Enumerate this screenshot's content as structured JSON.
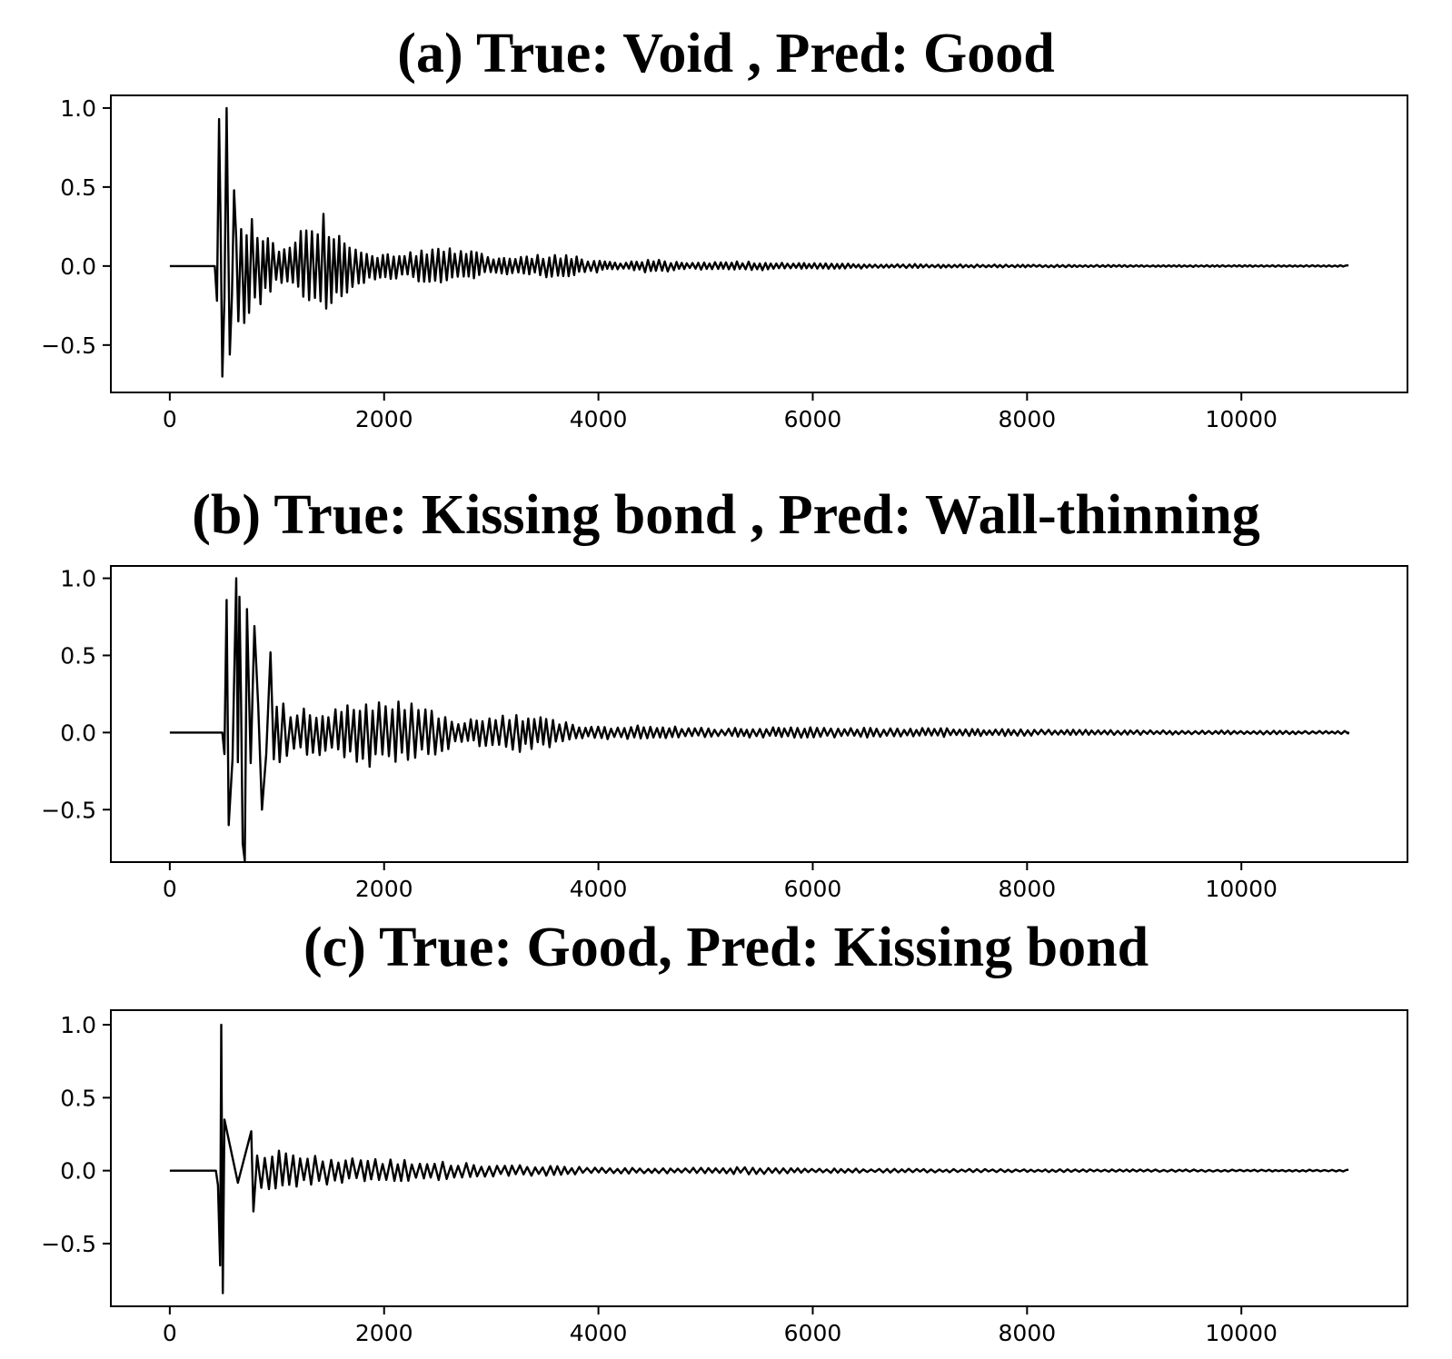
{
  "chart_data": [
    {
      "type": "line",
      "title": "(a) True: Void , Pred: Good",
      "xlabel": "",
      "ylabel": "",
      "xlim": [
        -550,
        11550
      ],
      "ylim": [
        -0.8,
        1.08
      ],
      "xticks": [
        0,
        2000,
        4000,
        6000,
        8000,
        10000
      ],
      "xtick_labels": [
        "0",
        "2000",
        "4000",
        "6000",
        "8000",
        "10000"
      ],
      "yticks": [
        1.0,
        0.5,
        0.0,
        -0.5
      ],
      "ytick_labels": [
        "1.0",
        "0.5",
        "0.0",
        "−0.5"
      ],
      "grid": false,
      "legend": "none",
      "line_color": "#000000",
      "signal": {
        "x_start": 0,
        "x_end": 11000,
        "onset": 420,
        "peaks": [
          {
            "x": 460,
            "y": 0.93
          },
          {
            "x": 490,
            "y": -0.7
          },
          {
            "x": 530,
            "y": 1.0
          },
          {
            "x": 560,
            "y": -0.56
          },
          {
            "x": 600,
            "y": 0.48
          },
          {
            "x": 640,
            "y": -0.35
          }
        ],
        "envelope": [
          [
            0,
            0
          ],
          [
            420,
            0
          ],
          [
            440,
            0.55
          ],
          [
            600,
            0.45
          ],
          [
            800,
            0.28
          ],
          [
            1000,
            0.12
          ],
          [
            1100,
            0.1
          ],
          [
            1300,
            0.3
          ],
          [
            1400,
            0.36
          ],
          [
            1500,
            0.3
          ],
          [
            1700,
            0.14
          ],
          [
            2000,
            0.08
          ],
          [
            2300,
            0.1
          ],
          [
            2600,
            0.12
          ],
          [
            2800,
            0.11
          ],
          [
            3000,
            0.05
          ],
          [
            3300,
            0.06
          ],
          [
            3600,
            0.09
          ],
          [
            3900,
            0.05
          ],
          [
            4200,
            0.02
          ],
          [
            4500,
            0.05
          ],
          [
            4800,
            0.02
          ],
          [
            5300,
            0.03
          ],
          [
            6000,
            0.018
          ],
          [
            7000,
            0.012
          ],
          [
            8000,
            0.008
          ],
          [
            9000,
            0.006
          ],
          [
            11000,
            0.005
          ]
        ],
        "period": 52
      }
    },
    {
      "type": "line",
      "title": "(b) True: Kissing bond , Pred: Wall-thinning",
      "xlabel": "",
      "ylabel": "",
      "xlim": [
        -550,
        11550
      ],
      "ylim": [
        -0.84,
        1.08
      ],
      "xticks": [
        0,
        2000,
        4000,
        6000,
        8000,
        10000
      ],
      "xtick_labels": [
        "0",
        "2000",
        "4000",
        "6000",
        "8000",
        "10000"
      ],
      "yticks": [
        1.0,
        0.5,
        0.0,
        -0.5
      ],
      "ytick_labels": [
        "1.0",
        "0.5",
        "0.0",
        "−0.5"
      ],
      "grid": false,
      "legend": "none",
      "line_color": "#000000",
      "signal": {
        "x_start": 0,
        "x_end": 11000,
        "onset": 490,
        "peaks": [
          {
            "x": 530,
            "y": 0.86
          },
          {
            "x": 550,
            "y": -0.6
          },
          {
            "x": 620,
            "y": 1.0
          },
          {
            "x": 650,
            "y": 0.88
          },
          {
            "x": 680,
            "y": -0.72
          },
          {
            "x": 700,
            "y": -0.83
          },
          {
            "x": 720,
            "y": 0.8
          },
          {
            "x": 790,
            "y": 0.69
          },
          {
            "x": 860,
            "y": -0.5
          },
          {
            "x": 940,
            "y": 0.52
          }
        ],
        "envelope": [
          [
            0,
            0
          ],
          [
            490,
            0
          ],
          [
            510,
            0.35
          ],
          [
            700,
            0.55
          ],
          [
            900,
            0.35
          ],
          [
            1100,
            0.18
          ],
          [
            1400,
            0.15
          ],
          [
            1700,
            0.22
          ],
          [
            1900,
            0.25
          ],
          [
            2200,
            0.2
          ],
          [
            2500,
            0.14
          ],
          [
            2700,
            0.08
          ],
          [
            3000,
            0.1
          ],
          [
            3300,
            0.13
          ],
          [
            3600,
            0.09
          ],
          [
            3900,
            0.04
          ],
          [
            4400,
            0.05
          ],
          [
            5000,
            0.03
          ],
          [
            6000,
            0.035
          ],
          [
            7000,
            0.03
          ],
          [
            8000,
            0.02
          ],
          [
            9000,
            0.015
          ],
          [
            11000,
            0.01
          ]
        ],
        "period": 60
      }
    },
    {
      "type": "line",
      "title": "(c) True: Good, Pred: Kissing bond",
      "xlabel": "",
      "ylabel": "",
      "xlim": [
        -550,
        11550
      ],
      "ylim": [
        -0.93,
        1.1
      ],
      "xticks": [
        0,
        2000,
        4000,
        6000,
        8000,
        10000
      ],
      "xtick_labels": [
        "0",
        "2000",
        "4000",
        "6000",
        "8000",
        "10000"
      ],
      "yticks": [
        1.0,
        0.5,
        0.0,
        -0.5
      ],
      "ytick_labels": [
        "1.0",
        "0.5",
        "0.0",
        "−0.5"
      ],
      "grid": false,
      "legend": "none",
      "line_color": "#000000",
      "signal": {
        "x_start": 0,
        "x_end": 11000,
        "onset": 430,
        "peaks": [
          {
            "x": 450,
            "y": -0.1
          },
          {
            "x": 470,
            "y": -0.65
          },
          {
            "x": 480,
            "y": 1.0
          },
          {
            "x": 495,
            "y": -0.84
          },
          {
            "x": 510,
            "y": 0.35
          },
          {
            "x": 760,
            "y": 0.27
          },
          {
            "x": 780,
            "y": -0.28
          }
        ],
        "envelope": [
          [
            0,
            0
          ],
          [
            430,
            0
          ],
          [
            520,
            0.22
          ],
          [
            700,
            0.2
          ],
          [
            900,
            0.15
          ],
          [
            1200,
            0.12
          ],
          [
            1500,
            0.1
          ],
          [
            1800,
            0.08
          ],
          [
            2400,
            0.07
          ],
          [
            3000,
            0.04
          ],
          [
            3500,
            0.035
          ],
          [
            4000,
            0.02
          ],
          [
            5000,
            0.02
          ],
          [
            5400,
            0.025
          ],
          [
            6000,
            0.015
          ],
          [
            7000,
            0.012
          ],
          [
            8000,
            0.01
          ],
          [
            9000,
            0.008
          ],
          [
            11000,
            0.006
          ]
        ],
        "period": 70
      }
    }
  ]
}
